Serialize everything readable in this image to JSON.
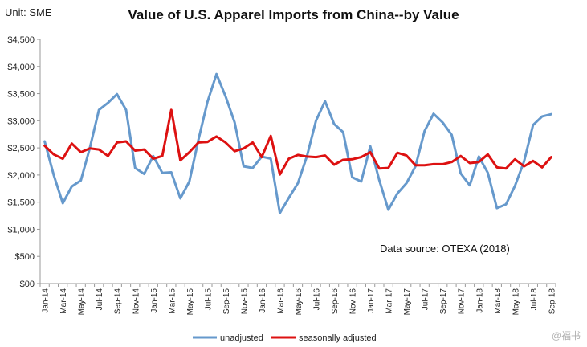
{
  "unit_label": "Unit: SME",
  "source_note": "Data source: OTEXA (2018)",
  "watermark": "@福书",
  "colors": {
    "unadjusted": "#6699cc",
    "seasonally_adjusted": "#dd1111",
    "axis": "#999999",
    "text": "#111111"
  },
  "chart_data": {
    "type": "line",
    "title": "Value of U.S. Apparel Imports from China--by Value",
    "xlabel": "",
    "ylabel": "",
    "ylim": [
      0,
      4500
    ],
    "grid": false,
    "legend_position": "bottom",
    "yticks": [
      0,
      500,
      1000,
      1500,
      2000,
      2500,
      3000,
      3500,
      4000,
      4500
    ],
    "ytick_labels": [
      "$00",
      "$500",
      "$1,000",
      "$1,500",
      "$2,000",
      "$2,500",
      "$3,000",
      "$3,500",
      "$4,000",
      "$4,500"
    ],
    "x": [
      "Jan-14",
      "Feb-14",
      "Mar-14",
      "Apr-14",
      "May-14",
      "Jun-14",
      "Jul-14",
      "Aug-14",
      "Sep-14",
      "Oct-14",
      "Nov-14",
      "Dec-14",
      "Jan-15",
      "Feb-15",
      "Mar-15",
      "Apr-15",
      "May-15",
      "Jun-15",
      "Jul-15",
      "Aug-15",
      "Sep-15",
      "Oct-15",
      "Nov-15",
      "Dec-15",
      "Jan-16",
      "Feb-16",
      "Mar-16",
      "Apr-16",
      "May-16",
      "Jun-16",
      "Jul-16",
      "Aug-16",
      "Sep-16",
      "Oct-16",
      "Nov-16",
      "Dec-16",
      "Jan-17",
      "Feb-17",
      "Mar-17",
      "Apr-17",
      "May-17",
      "Jun-17",
      "Jul-17",
      "Aug-17",
      "Sep-17",
      "Oct-17",
      "Nov-17",
      "Dec-17",
      "Jan-18",
      "Feb-18",
      "Mar-18",
      "Apr-18",
      "May-18",
      "Jun-18",
      "Jul-18",
      "Aug-18",
      "Sep-18"
    ],
    "xtick_labels": [
      "Jan-14",
      "Mar-14",
      "May-14",
      "Jul-14",
      "Sep-14",
      "Nov-14",
      "Jan-15",
      "Mar-15",
      "May-15",
      "Jul-15",
      "Sep-15",
      "Nov-15",
      "Jan-16",
      "Mar-16",
      "May-16",
      "Jul-16",
      "Sep-16",
      "Nov-16",
      "Jan-17",
      "Mar-17",
      "May-17",
      "Jul-17",
      "Sep-17",
      "Nov-17",
      "Jan-18",
      "Mar-18",
      "May-18",
      "Jul-18",
      "Sep-18"
    ],
    "series": [
      {
        "name": "unadjusted",
        "values": [
          2620,
          2000,
          1480,
          1790,
          1900,
          2500,
          3200,
          3330,
          3490,
          3200,
          2130,
          2020,
          2350,
          2040,
          2050,
          1570,
          1880,
          2650,
          3350,
          3860,
          3450,
          2970,
          2160,
          2130,
          2340,
          2300,
          1300,
          1580,
          1850,
          2350,
          3000,
          3360,
          2940,
          2790,
          1960,
          1880,
          2530,
          1900,
          1360,
          1660,
          1850,
          2160,
          2810,
          3130,
          2970,
          2740,
          2030,
          1810,
          2340,
          2040,
          1390,
          1460,
          1800,
          2250,
          2920,
          3080,
          3120
        ]
      },
      {
        "name": "seasonally adjusted",
        "values": [
          2540,
          2380,
          2300,
          2580,
          2420,
          2490,
          2470,
          2350,
          2600,
          2620,
          2450,
          2470,
          2300,
          2350,
          3200,
          2270,
          2420,
          2600,
          2610,
          2710,
          2600,
          2440,
          2490,
          2600,
          2330,
          2720,
          2010,
          2300,
          2370,
          2340,
          2330,
          2360,
          2190,
          2280,
          2290,
          2330,
          2420,
          2120,
          2130,
          2410,
          2360,
          2180,
          2180,
          2200,
          2200,
          2240,
          2350,
          2220,
          2240,
          2380,
          2140,
          2120,
          2290,
          2160,
          2260,
          2140,
          2330
        ]
      }
    ]
  }
}
